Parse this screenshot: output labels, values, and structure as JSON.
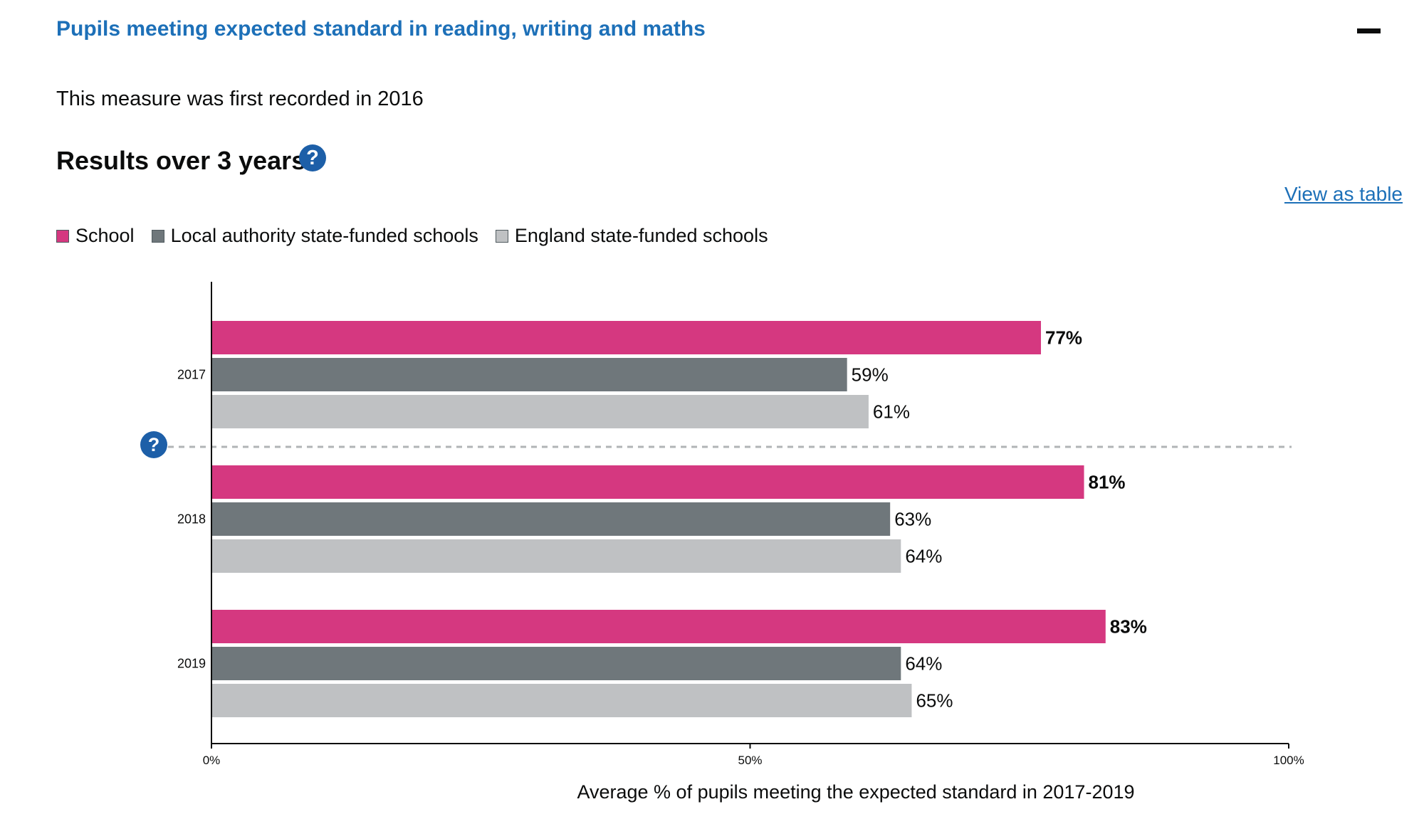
{
  "header": {
    "title": "Pupils meeting expected standard in reading, writing and maths"
  },
  "intro": {
    "text": "This measure was first recorded in 2016"
  },
  "section": {
    "heading": "Results over 3 years",
    "help_glyph": "?",
    "table_link": "View as table"
  },
  "chart_data": {
    "type": "bar",
    "orientation": "horizontal",
    "categories": [
      "2017",
      "2018",
      "2019"
    ],
    "series": [
      {
        "name": "School",
        "values": [
          77,
          81,
          83
        ],
        "color": "#d53880",
        "label_bold": true
      },
      {
        "name": "Local authority state-funded schools",
        "values": [
          59,
          63,
          64
        ],
        "color": "#6f777b",
        "label_bold": false
      },
      {
        "name": "England state-funded schools",
        "values": [
          61,
          64,
          65
        ],
        "color": "#bfc1c3",
        "label_bold": false
      }
    ],
    "value_suffix": "%",
    "xlim": [
      0,
      100
    ],
    "x_ticks": [
      "0%",
      "50%",
      "100%"
    ],
    "xlabel": "Average % of pupils meeting the expected standard in 2017-2019",
    "ylabel": "",
    "legend_position": "top-left",
    "grid": false,
    "divider_after_category": "2017",
    "divider_help_glyph": "?"
  }
}
